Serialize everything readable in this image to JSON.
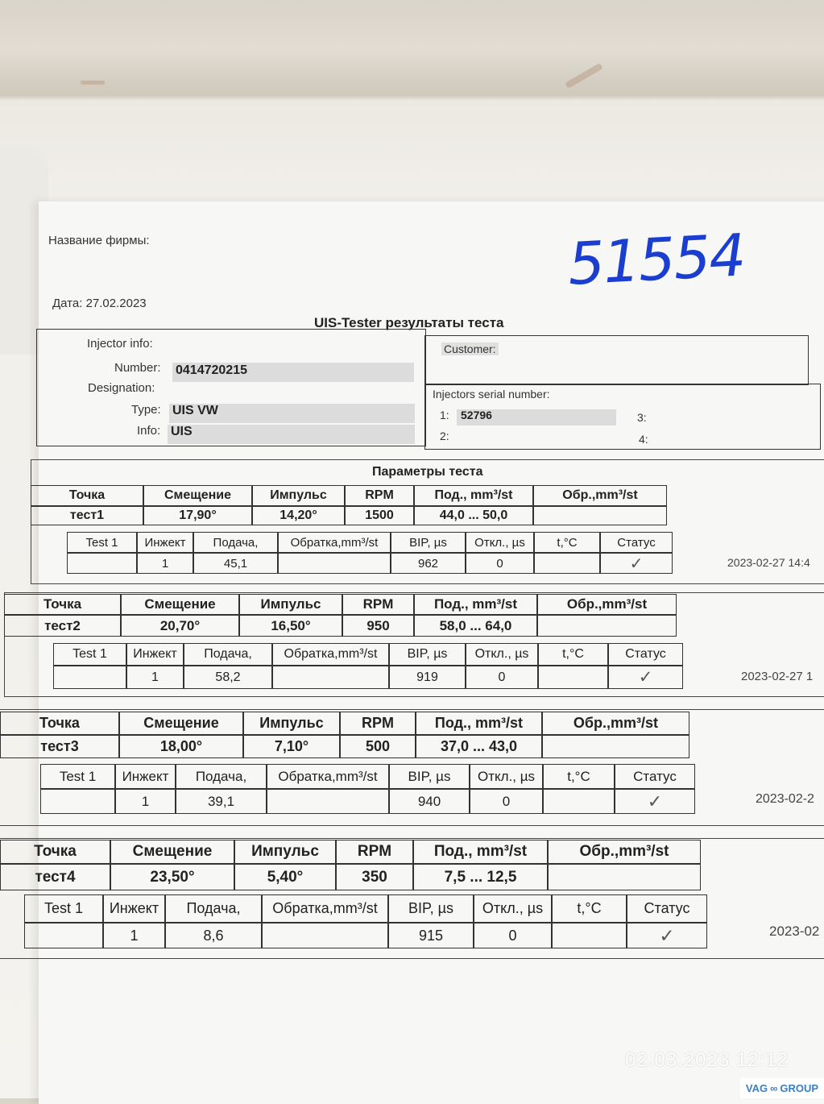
{
  "header": {
    "company_label": "Название фирмы:",
    "handwritten_number": "51554",
    "date_label": "Дата:",
    "date_value": "27.02.2023",
    "title": "UIS-Tester результаты теста"
  },
  "injector_info": {
    "section_label": "Injector info:",
    "number_label": "Number:",
    "number_value": "0414720215",
    "designation_label": "Designation:",
    "type_label": "Type:",
    "type_value": "UIS VW",
    "info_label": "Info:",
    "info_value": "UIS",
    "customer_label": "Customer:",
    "serial_label": "Injectors serial number:",
    "serials": [
      {
        "label": "1:",
        "value": "52796"
      },
      {
        "label": "2:",
        "value": ""
      },
      {
        "label": "3:",
        "value": ""
      },
      {
        "label": "4:",
        "value": ""
      }
    ]
  },
  "params_title": "Параметры теста",
  "point_headers": [
    "Точка",
    "Смещение",
    "Импульс",
    "RPM",
    "Под., mm³/st",
    "Обр.,mm³/st"
  ],
  "result_headers": [
    "Test 1",
    "Инжект",
    "Подача,",
    "Обратка,mm³/st",
    "BIP, µs",
    "Откл., µs",
    "t,°C",
    "Статус"
  ],
  "tests": [
    {
      "point": [
        "тест1",
        "17,90°",
        "14,20°",
        "1500",
        "44,0 ... 50,0",
        ""
      ],
      "result": [
        "",
        "1",
        "45,1",
        "",
        "962",
        "0",
        "",
        "✓"
      ],
      "timestamp": "2023-02-27 14:4"
    },
    {
      "point": [
        "тест2",
        "20,70°",
        "16,50°",
        "950",
        "58,0 ... 64,0",
        ""
      ],
      "result": [
        "",
        "1",
        "58,2",
        "",
        "919",
        "0",
        "",
        "✓"
      ],
      "timestamp": "2023-02-27 1"
    },
    {
      "point": [
        "тест3",
        "18,00°",
        "7,10°",
        "500",
        "37,0 ... 43,0",
        ""
      ],
      "result": [
        "",
        "1",
        "39,1",
        "",
        "940",
        "0",
        "",
        "✓"
      ],
      "timestamp": "2023-02-2"
    },
    {
      "point": [
        "тест4",
        "23,50°",
        "5,40°",
        "350",
        "7,5 ... 12,5",
        ""
      ],
      "result": [
        "",
        "1",
        "8,6",
        "",
        "915",
        "0",
        "",
        "✓"
      ],
      "timestamp": "2023-02"
    }
  ],
  "photo_overlay": {
    "datetime": "02.03.2023  12:12",
    "logo_text_left": "VAG",
    "logo_text_right": "GROUP",
    "logo_color": "#3a7fc4",
    "ink_color": "#1a3fd0"
  }
}
